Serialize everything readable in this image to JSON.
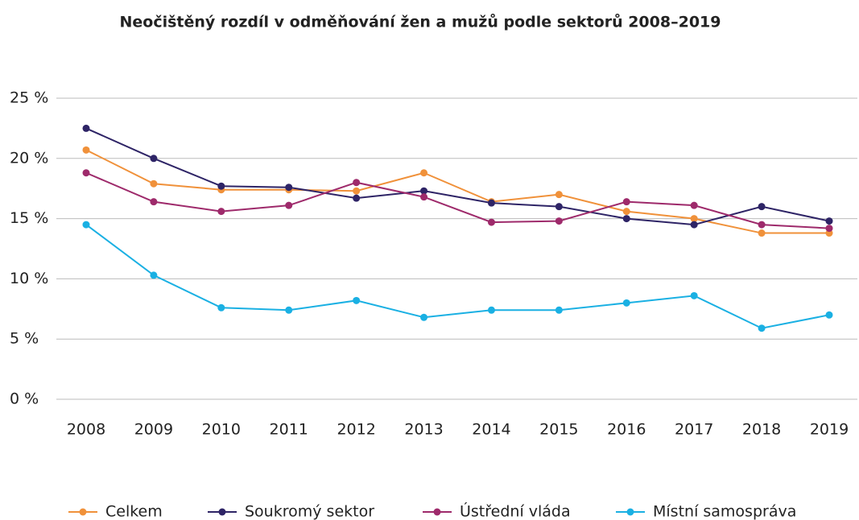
{
  "chart_data": {
    "type": "line",
    "title": "Neočištěný rozdíl v odměňování žen a mužů podle sektorů 2008–2019",
    "categories": [
      "2008",
      "2009",
      "2010",
      "2011",
      "2012",
      "2013",
      "2014",
      "2015",
      "2016",
      "2017",
      "2018",
      "2019"
    ],
    "series": [
      {
        "name": "Celkem",
        "color": "#f0913a",
        "values": [
          20.7,
          17.9,
          17.4,
          17.4,
          17.3,
          18.8,
          16.4,
          17.0,
          15.6,
          15.0,
          13.8,
          13.8
        ]
      },
      {
        "name": "Soukromý sektor",
        "color": "#2e2466",
        "values": [
          22.5,
          20.0,
          17.7,
          17.6,
          16.7,
          17.3,
          16.3,
          16.0,
          15.0,
          14.5,
          16.0,
          14.8
        ]
      },
      {
        "name": "Ústřední vláda",
        "color": "#9e2a6b",
        "values": [
          18.8,
          16.4,
          15.6,
          16.1,
          18.0,
          16.8,
          14.7,
          14.8,
          16.4,
          16.1,
          14.5,
          14.2
        ]
      },
      {
        "name": "Místní samospráva",
        "color": "#1ab0e3",
        "values": [
          14.5,
          10.3,
          7.6,
          7.4,
          8.2,
          6.8,
          7.4,
          7.4,
          8.0,
          8.6,
          5.9,
          7.0
        ]
      }
    ],
    "ylim": [
      0,
      25
    ],
    "yticks": [
      {
        "value": 0,
        "label": "0 %"
      },
      {
        "value": 5,
        "label": "5 %"
      },
      {
        "value": 10,
        "label": "10 %"
      },
      {
        "value": 15,
        "label": "15 %"
      },
      {
        "value": 20,
        "label": "20 %"
      },
      {
        "value": 25,
        "label": "25 %"
      }
    ],
    "grid": true,
    "legend": "bottom"
  }
}
